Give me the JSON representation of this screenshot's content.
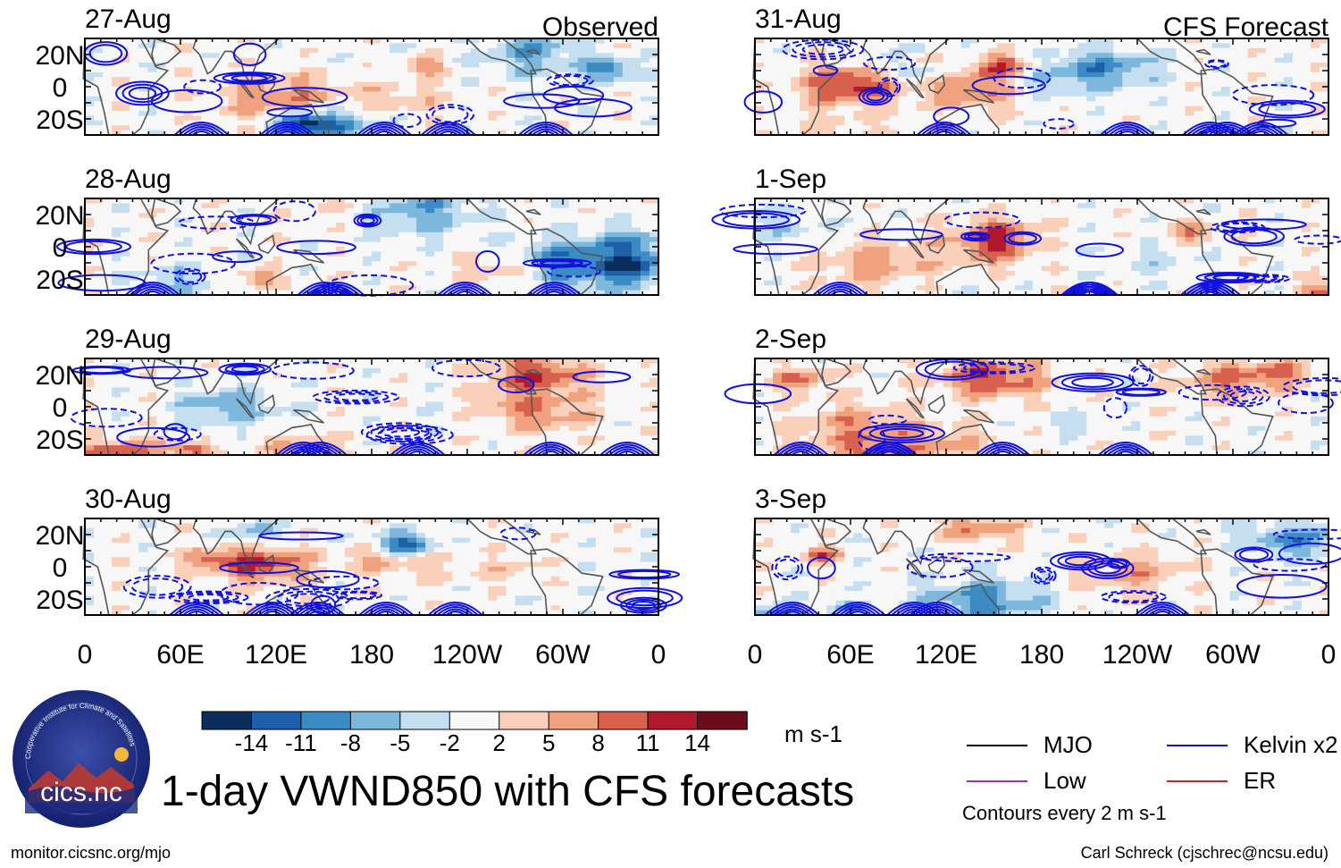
{
  "figure_title": "1-day VWND850 with CFS forecasts",
  "units": "m s-1",
  "contour_note": "Contours every 2 m s-1",
  "url": "monitor.cicsnc.org/mjo",
  "author": "Carl Schreck (cjschrec@ncsu.edu)",
  "logo": {
    "text": "cics.nc",
    "ring_text": "Cooperative Institute for Climate and Satellites"
  },
  "legend": [
    {
      "label": "MJO",
      "color": "#000000"
    },
    {
      "label": "Kelvin x2",
      "color": "#1010e0"
    },
    {
      "label": "Low",
      "color": "#9933cc"
    },
    {
      "label": "ER",
      "color": "#cc2222"
    }
  ],
  "chart_data": {
    "type": "heatmap",
    "variable": "VWND850",
    "xticks": [
      "0",
      "60E",
      "120E",
      "180",
      "120W",
      "60W",
      "0"
    ],
    "yticks": [
      "20N",
      "0",
      "20S"
    ],
    "xlim": [
      0,
      360
    ],
    "ylim": [
      -30,
      30
    ],
    "colorbar": {
      "levels": [
        -14,
        -11,
        -8,
        -5,
        -2,
        2,
        5,
        8,
        11,
        14
      ],
      "labels": [
        "-14",
        "-11",
        "-8",
        "-5",
        "-2",
        "2",
        "5",
        "8",
        "11",
        "14"
      ],
      "colors": [
        "#0b2d5b",
        "#1d5fa8",
        "#3b8bc4",
        "#7db7db",
        "#c6dff0",
        "#f7f7f7",
        "#fbd0bb",
        "#f0a27e",
        "#d8604e",
        "#b2182b",
        "#6a0c1c"
      ]
    },
    "panels": [
      {
        "date": "27-Aug",
        "label": "Observed",
        "seed": 11
      },
      {
        "date": "31-Aug",
        "label": "CFS Forecast",
        "seed": 21
      },
      {
        "date": "28-Aug",
        "label": "",
        "seed": 33
      },
      {
        "date": "1-Sep",
        "label": "",
        "seed": 47
      },
      {
        "date": "29-Aug",
        "label": "",
        "seed": 52
      },
      {
        "date": "2-Sep",
        "label": "",
        "seed": 68
      },
      {
        "date": "30-Aug",
        "label": "",
        "seed": 74
      },
      {
        "date": "3-Sep",
        "label": "",
        "seed": 89
      }
    ]
  }
}
